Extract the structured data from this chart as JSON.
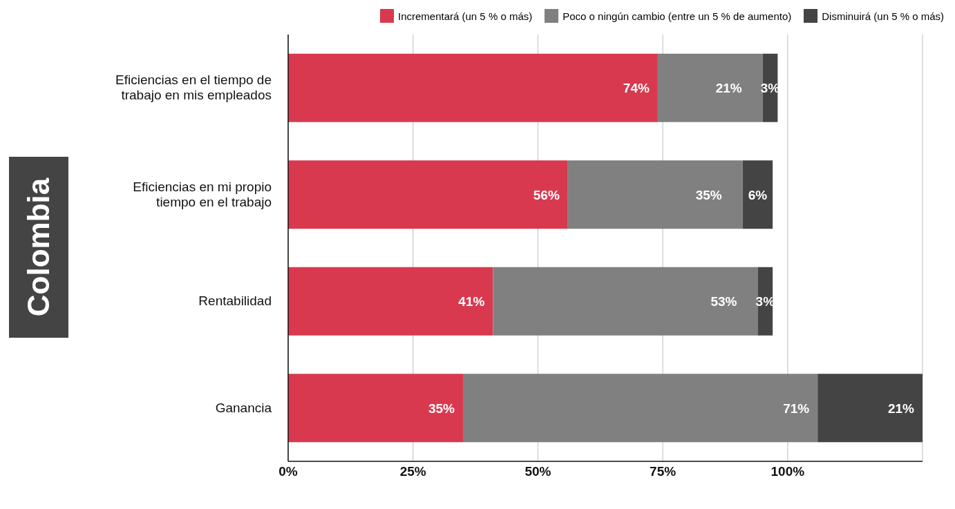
{
  "chart_data": {
    "type": "bar",
    "orientation": "horizontal",
    "stacked": true,
    "ylabel": "Colombia",
    "categories": [
      "Eficiencias en el tiempo de trabajo en mis empleados",
      "Eficiencias en mi propio tiempo en el trabajo",
      "Rentabilidad",
      "Ganancia"
    ],
    "series": [
      {
        "name": "Incrementará (un 5 % o más)",
        "color": "#d9394f",
        "values": [
          74,
          56,
          41,
          35
        ],
        "value_labels": [
          "74%",
          "56%",
          "41%",
          "35%"
        ]
      },
      {
        "name": "Poco o ningún cambio (entre un 5 % de aumento)",
        "color": "#808080",
        "values": [
          21,
          35,
          53,
          71
        ],
        "value_labels": [
          "21%",
          "35%",
          "53%",
          "71%"
        ]
      },
      {
        "name": "Disminuirá (un 5 % o más)",
        "color": "#444444",
        "values": [
          3,
          6,
          3,
          21
        ],
        "value_labels": [
          "3%",
          "6%",
          "3%",
          "21%"
        ]
      }
    ],
    "xlim": [
      0,
      127
    ],
    "xticks": [
      {
        "value": 0,
        "label": "0%"
      },
      {
        "value": 25,
        "label": "25%"
      },
      {
        "value": 50,
        "label": "50%"
      },
      {
        "value": 75,
        "label": "75%"
      },
      {
        "value": 100,
        "label": "100%"
      }
    ],
    "grid": "x",
    "legend": "top"
  }
}
